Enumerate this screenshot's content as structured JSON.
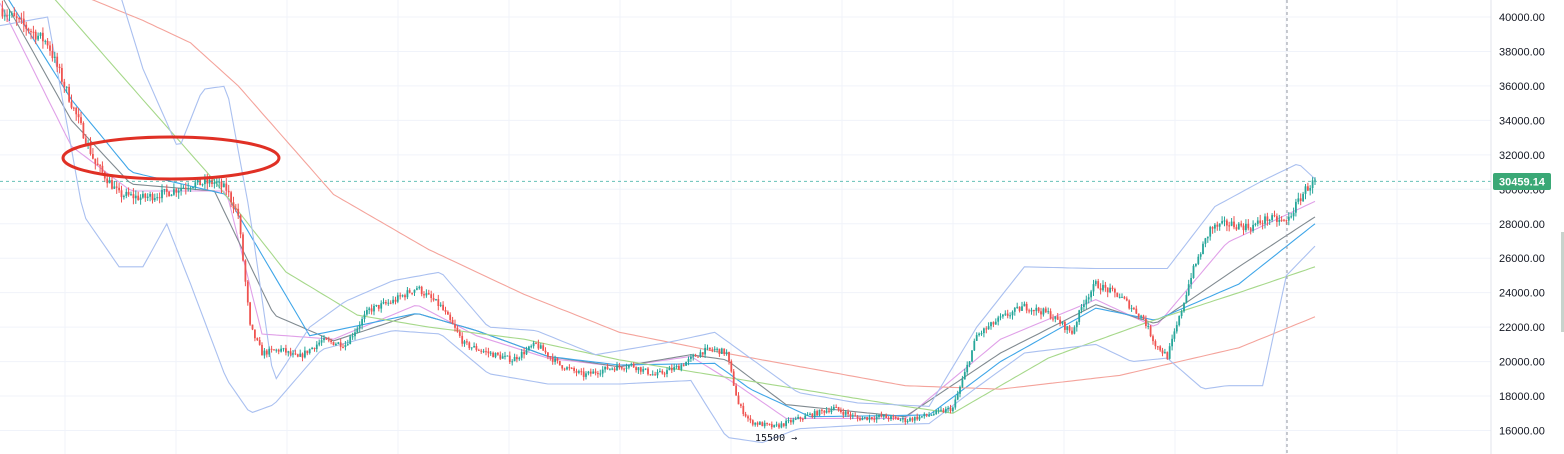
{
  "chart_data": {
    "type": "candlestick",
    "title": "",
    "xlabel": "",
    "ylabel": "",
    "ylim": [
      15000,
      41000
    ],
    "grid": true,
    "y_ticks": [
      40000,
      38000,
      36000,
      34000,
      32000,
      30000,
      28000,
      26000,
      24000,
      22000,
      20000,
      18000,
      16000
    ],
    "y_tick_labels": [
      "40000.00",
      "38000.00",
      "36000.00",
      "34000.00",
      "32000.00",
      "30000.00",
      "28000.00",
      "26000.00",
      "24000.00",
      "22000.00",
      "20000.00",
      "18000.00",
      "16000.00"
    ],
    "current_price": 30459.14,
    "current_price_label": "30459.14",
    "low_annotation": {
      "text": "15500 →",
      "value": 15500
    },
    "price_path": [
      [
        0,
        40500
      ],
      [
        20,
        38500
      ],
      [
        30,
        35000
      ],
      [
        40,
        31500
      ],
      [
        50,
        29700
      ],
      [
        60,
        29500
      ],
      [
        70,
        29800
      ],
      [
        80,
        30300
      ],
      [
        90,
        30400
      ],
      [
        95,
        30000
      ],
      [
        100,
        28500
      ],
      [
        105,
        22000
      ],
      [
        110,
        20500
      ],
      [
        118,
        20700
      ],
      [
        125,
        20200
      ],
      [
        135,
        21200
      ],
      [
        145,
        21000
      ],
      [
        155,
        23000
      ],
      [
        165,
        23500
      ],
      [
        175,
        24300
      ],
      [
        185,
        23200
      ],
      [
        195,
        21000
      ],
      [
        205,
        20500
      ],
      [
        215,
        20100
      ],
      [
        225,
        21000
      ],
      [
        235,
        19800
      ],
      [
        245,
        19200
      ],
      [
        255,
        19600
      ],
      [
        265,
        19800
      ],
      [
        275,
        19200
      ],
      [
        285,
        19700
      ],
      [
        295,
        20600
      ],
      [
        300,
        20700
      ],
      [
        305,
        20500
      ],
      [
        310,
        17500
      ],
      [
        315,
        16500
      ],
      [
        325,
        16200
      ],
      [
        340,
        16900
      ],
      [
        350,
        17300
      ],
      [
        360,
        16700
      ],
      [
        370,
        16800
      ],
      [
        380,
        16600
      ],
      [
        390,
        16900
      ],
      [
        400,
        17300
      ],
      [
        405,
        19300
      ],
      [
        410,
        21500
      ],
      [
        420,
        22500
      ],
      [
        430,
        23200
      ],
      [
        440,
        22800
      ],
      [
        450,
        21700
      ],
      [
        455,
        23500
      ],
      [
        460,
        24500
      ],
      [
        470,
        23800
      ],
      [
        480,
        22500
      ],
      [
        485,
        21000
      ],
      [
        490,
        20300
      ],
      [
        495,
        22500
      ],
      [
        500,
        25000
      ],
      [
        508,
        27700
      ],
      [
        515,
        28000
      ],
      [
        525,
        27800
      ],
      [
        532,
        28300
      ],
      [
        540,
        28100
      ],
      [
        548,
        30000
      ],
      [
        552,
        30459
      ]
    ],
    "indicators": [
      {
        "color": "#e0a0e8",
        "role": "ema-short",
        "values": [
          [
            0,
            40800
          ],
          [
            30,
            32500
          ],
          [
            55,
            29900
          ],
          [
            95,
            29900
          ],
          [
            110,
            21600
          ],
          [
            140,
            21300
          ],
          [
            175,
            23300
          ],
          [
            200,
            21500
          ],
          [
            230,
            20200
          ],
          [
            260,
            19700
          ],
          [
            290,
            20300
          ],
          [
            310,
            18600
          ],
          [
            330,
            16700
          ],
          [
            380,
            16700
          ],
          [
            420,
            21300
          ],
          [
            460,
            23600
          ],
          [
            485,
            22000
          ],
          [
            515,
            26900
          ],
          [
            552,
            29300
          ]
        ]
      },
      {
        "color": "#808a90",
        "role": "ema-mid",
        "values": [
          [
            0,
            41400
          ],
          [
            30,
            34000
          ],
          [
            55,
            30300
          ],
          [
            90,
            29900
          ],
          [
            115,
            22700
          ],
          [
            140,
            21200
          ],
          [
            175,
            22800
          ],
          [
            200,
            21800
          ],
          [
            230,
            20300
          ],
          [
            260,
            19700
          ],
          [
            290,
            20400
          ],
          [
            305,
            20100
          ],
          [
            330,
            17500
          ],
          [
            380,
            16800
          ],
          [
            420,
            20500
          ],
          [
            460,
            23300
          ],
          [
            485,
            22200
          ],
          [
            520,
            25500
          ],
          [
            552,
            28400
          ]
        ]
      },
      {
        "color": "#3fa6e8",
        "role": "ema-long",
        "values": [
          [
            0,
            41800
          ],
          [
            30,
            35200
          ],
          [
            55,
            31000
          ],
          [
            95,
            29700
          ],
          [
            130,
            21500
          ],
          [
            175,
            22800
          ],
          [
            200,
            21800
          ],
          [
            230,
            20300
          ],
          [
            260,
            19800
          ],
          [
            300,
            19900
          ],
          [
            315,
            18400
          ],
          [
            340,
            16800
          ],
          [
            390,
            16900
          ],
          [
            420,
            20000
          ],
          [
            460,
            23100
          ],
          [
            485,
            22400
          ],
          [
            520,
            24500
          ],
          [
            552,
            28000
          ]
        ]
      },
      {
        "color": "#a6d88a",
        "role": "sma-100",
        "values": [
          [
            20,
            41500
          ],
          [
            60,
            35200
          ],
          [
            90,
            30500
          ],
          [
            120,
            25200
          ],
          [
            150,
            22700
          ],
          [
            180,
            22000
          ],
          [
            220,
            21300
          ],
          [
            260,
            20100
          ],
          [
            300,
            19200
          ],
          [
            340,
            18300
          ],
          [
            380,
            17400
          ],
          [
            400,
            17000
          ],
          [
            440,
            20200
          ],
          [
            480,
            22200
          ],
          [
            520,
            24000
          ],
          [
            552,
            25500
          ]
        ]
      },
      {
        "color": "#f4a39b",
        "role": "sma-200",
        "values": [
          [
            30,
            41500
          ],
          [
            60,
            39800
          ],
          [
            80,
            38500
          ],
          [
            100,
            36000
          ],
          [
            140,
            29700
          ],
          [
            180,
            26500
          ],
          [
            220,
            23900
          ],
          [
            260,
            21700
          ],
          [
            300,
            20600
          ],
          [
            340,
            19600
          ],
          [
            380,
            18600
          ],
          [
            420,
            18400
          ],
          [
            470,
            19200
          ],
          [
            520,
            20800
          ],
          [
            552,
            22600
          ]
        ]
      },
      {
        "color": "#aac0f0",
        "role": "bollinger-upper",
        "values": [
          [
            50,
            41500
          ],
          [
            60,
            37000
          ],
          [
            75,
            32300
          ],
          [
            85,
            35800
          ],
          [
            95,
            36000
          ],
          [
            105,
            28500
          ],
          [
            115,
            18800
          ],
          [
            130,
            22000
          ],
          [
            145,
            23500
          ],
          [
            165,
            24700
          ],
          [
            185,
            25200
          ],
          [
            205,
            22000
          ],
          [
            225,
            21800
          ],
          [
            250,
            20400
          ],
          [
            280,
            21100
          ],
          [
            290,
            21400
          ],
          [
            300,
            21700
          ],
          [
            315,
            20200
          ],
          [
            335,
            18200
          ],
          [
            360,
            17600
          ],
          [
            390,
            17400
          ],
          [
            410,
            22000
          ],
          [
            430,
            25500
          ],
          [
            460,
            25400
          ],
          [
            490,
            25400
          ],
          [
            510,
            29000
          ],
          [
            530,
            30500
          ],
          [
            545,
            31500
          ],
          [
            552,
            30600
          ]
        ]
      },
      {
        "color": "#aac0f0",
        "role": "bollinger-lower",
        "values": [
          [
            0,
            39500
          ],
          [
            20,
            40000
          ],
          [
            35,
            28500
          ],
          [
            50,
            25500
          ],
          [
            60,
            25500
          ],
          [
            70,
            28000
          ],
          [
            80,
            24500
          ],
          [
            95,
            19000
          ],
          [
            105,
            17000
          ],
          [
            115,
            17500
          ],
          [
            135,
            20700
          ],
          [
            165,
            21800
          ],
          [
            185,
            21600
          ],
          [
            205,
            19300
          ],
          [
            230,
            18700
          ],
          [
            260,
            18700
          ],
          [
            290,
            18900
          ],
          [
            305,
            15600
          ],
          [
            320,
            15300
          ],
          [
            335,
            16100
          ],
          [
            360,
            16300
          ],
          [
            390,
            16400
          ],
          [
            410,
            18500
          ],
          [
            430,
            20500
          ],
          [
            460,
            21000
          ],
          [
            475,
            20000
          ],
          [
            490,
            20200
          ],
          [
            505,
            18400
          ],
          [
            515,
            18600
          ],
          [
            530,
            18600
          ],
          [
            540,
            25000
          ],
          [
            552,
            26700
          ]
        ]
      }
    ],
    "annotations": [
      {
        "shape": "ellipse",
        "color": "#e03025",
        "note": ""
      }
    ]
  },
  "colors": {
    "up": "#26a69a",
    "down": "#ef5350",
    "grid": "#f0f3fa",
    "price_line": "#26a69a",
    "badge": "#3aa876",
    "crosshair": "#9598a1"
  }
}
